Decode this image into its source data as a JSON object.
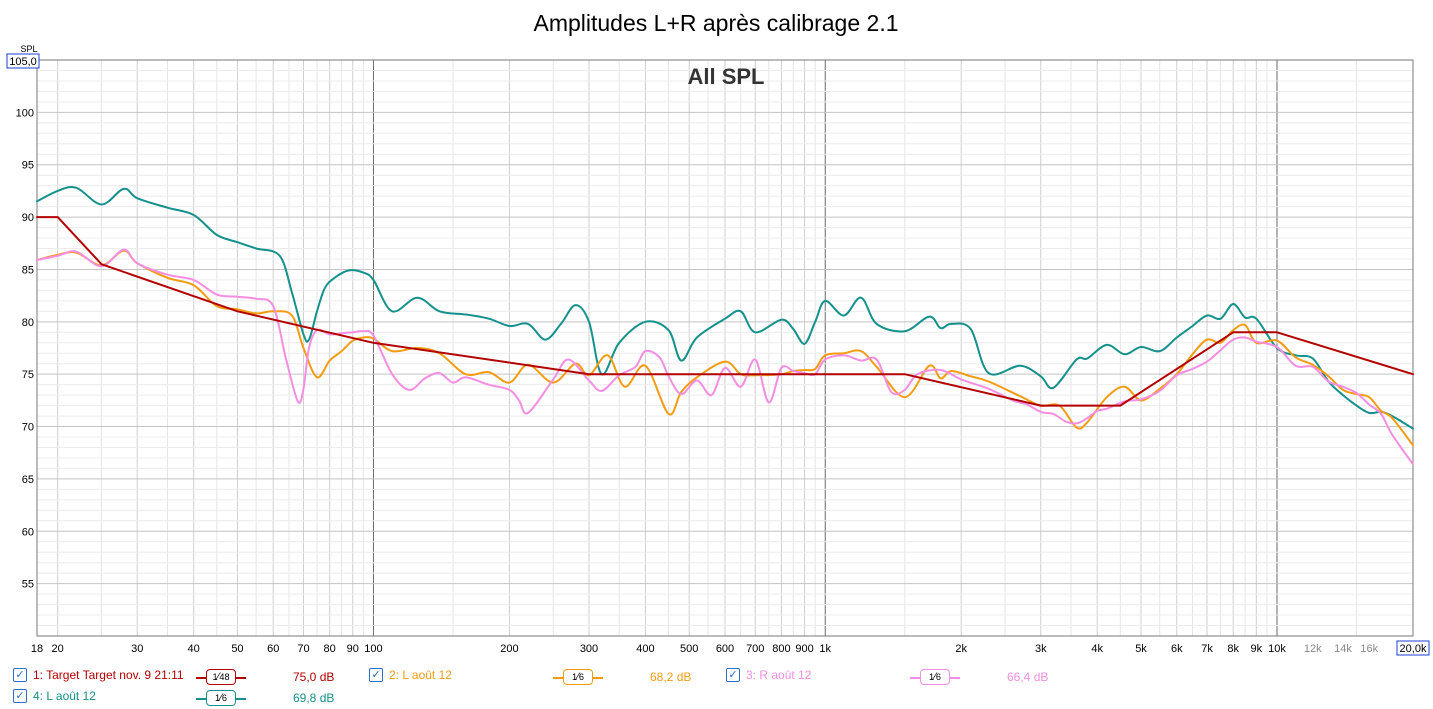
{
  "chart_data": {
    "type": "line",
    "title": "Amplitudes L+R après calibrage 2.1",
    "annotation": "All SPL",
    "ylabel": "SPL",
    "y_top_box": "105,0",
    "x_right_box": "20,0k",
    "x_scale": "log",
    "xlim": [
      18,
      20000
    ],
    "ylim": [
      50,
      105
    ],
    "y_ticks": [
      55,
      60,
      65,
      70,
      75,
      80,
      85,
      90,
      95,
      100
    ],
    "x_ticks": [
      {
        "v": 18,
        "label": "18"
      },
      {
        "v": 20,
        "label": "20"
      },
      {
        "v": 30,
        "label": "30"
      },
      {
        "v": 40,
        "label": "40"
      },
      {
        "v": 50,
        "label": "50"
      },
      {
        "v": 60,
        "label": "60"
      },
      {
        "v": 70,
        "label": "70"
      },
      {
        "v": 80,
        "label": "80"
      },
      {
        "v": 90,
        "label": "90"
      },
      {
        "v": 100,
        "label": "100"
      },
      {
        "v": 200,
        "label": "200"
      },
      {
        "v": 300,
        "label": "300"
      },
      {
        "v": 400,
        "label": "400"
      },
      {
        "v": 500,
        "label": "500"
      },
      {
        "v": 600,
        "label": "600"
      },
      {
        "v": 700,
        "label": "700"
      },
      {
        "v": 800,
        "label": "800"
      },
      {
        "v": 900,
        "label": "900"
      },
      {
        "v": 1000,
        "label": "1k"
      },
      {
        "v": 2000,
        "label": "2k"
      },
      {
        "v": 3000,
        "label": "3k"
      },
      {
        "v": 4000,
        "label": "4k"
      },
      {
        "v": 5000,
        "label": "5k"
      },
      {
        "v": 6000,
        "label": "6k"
      },
      {
        "v": 7000,
        "label": "7k"
      },
      {
        "v": 8000,
        "label": "8k"
      },
      {
        "v": 9000,
        "label": "9k"
      },
      {
        "v": 10000,
        "label": "10k"
      },
      {
        "v": 12000,
        "label": "12k"
      },
      {
        "v": 14000,
        "label": "14k"
      },
      {
        "v": 16000,
        "label": "16k"
      }
    ],
    "series": [
      {
        "name": "L août 12 (4)",
        "color": "#14918c",
        "x": [
          18,
          20,
          22,
          25,
          28,
          30,
          35,
          40,
          45,
          50,
          55,
          62,
          66,
          70,
          72,
          75,
          78,
          82,
          88,
          95,
          100,
          110,
          125,
          140,
          160,
          180,
          200,
          220,
          240,
          260,
          280,
          300,
          320,
          350,
          400,
          450,
          480,
          520,
          600,
          650,
          700,
          800,
          850,
          900,
          950,
          1000,
          1100,
          1200,
          1300,
          1500,
          1700,
          1800,
          1900,
          2100,
          2300,
          2700,
          3000,
          3200,
          3600,
          3800,
          4200,
          4600,
          5000,
          5500,
          6000,
          6500,
          7000,
          7500,
          8000,
          8500,
          9000,
          10000,
          11000,
          12000,
          13000,
          14000,
          15000,
          16000,
          17000,
          18000,
          20000
        ],
        "values": [
          91.5,
          92.5,
          92.8,
          91.2,
          92.7,
          91.8,
          90.9,
          90.2,
          88.3,
          87.6,
          87.0,
          86.3,
          82.8,
          78.8,
          78.3,
          81.0,
          83.2,
          84.2,
          84.9,
          84.7,
          84.0,
          81.0,
          82.3,
          81.0,
          80.7,
          80.3,
          79.6,
          79.8,
          78.3,
          79.8,
          81.6,
          80.0,
          75.0,
          78.0,
          80.0,
          79.2,
          76.3,
          78.5,
          80.3,
          81.0,
          79.0,
          80.2,
          79.3,
          77.9,
          80.0,
          82.0,
          80.6,
          82.3,
          79.8,
          79.1,
          80.5,
          79.4,
          79.8,
          79.3,
          75.1,
          75.8,
          74.8,
          73.7,
          76.4,
          76.5,
          77.8,
          76.9,
          77.6,
          77.2,
          78.5,
          79.6,
          80.6,
          80.3,
          81.7,
          80.4,
          80.3,
          77.5,
          76.8,
          76.5,
          74.3,
          73.0,
          72.0,
          71.3,
          71.4,
          71.0,
          69.8
        ]
      },
      {
        "name": "L août 12 (2)",
        "color": "#f39c12",
        "x": [
          18,
          20,
          22,
          25,
          28,
          30,
          35,
          40,
          45,
          50,
          55,
          60,
          66,
          70,
          75,
          80,
          85,
          90,
          95,
          100,
          110,
          125,
          140,
          160,
          180,
          200,
          220,
          250,
          280,
          300,
          330,
          360,
          400,
          450,
          480,
          520,
          600,
          650,
          700,
          800,
          850,
          900,
          950,
          1000,
          1100,
          1200,
          1300,
          1500,
          1700,
          1800,
          1900,
          2100,
          2300,
          2700,
          3000,
          3300,
          3600,
          3800,
          4200,
          4600,
          5000,
          5500,
          6000,
          6500,
          7000,
          7500,
          8000,
          8500,
          9000,
          10000,
          11000,
          12000,
          13000,
          14000,
          15000,
          16000,
          17000,
          18000,
          20000
        ],
        "values": [
          85.9,
          86.4,
          86.6,
          85.4,
          86.8,
          85.6,
          84.2,
          83.5,
          81.5,
          81.2,
          80.8,
          81.0,
          80.6,
          77.5,
          74.7,
          76.3,
          77.2,
          78.2,
          78.5,
          78.4,
          77.2,
          77.5,
          77.0,
          75.0,
          75.2,
          74.2,
          75.9,
          74.2,
          76.0,
          74.9,
          76.8,
          73.8,
          75.8,
          71.2,
          73.3,
          74.7,
          76.2,
          75.0,
          74.9,
          75.0,
          75.3,
          75.4,
          75.5,
          76.8,
          77.0,
          77.2,
          75.7,
          72.8,
          75.8,
          74.6,
          75.3,
          74.8,
          74.3,
          72.9,
          72.0,
          72.0,
          69.9,
          70.4,
          72.8,
          73.8,
          72.5,
          73.6,
          75.0,
          76.9,
          78.3,
          78.0,
          79.2,
          79.7,
          78.0,
          78.2,
          76.6,
          75.9,
          74.8,
          73.5,
          73.1,
          72.8,
          71.5,
          70.8,
          68.2
        ]
      },
      {
        "name": "R août 12 (3)",
        "color": "#f48ee3",
        "x": [
          18,
          20,
          22,
          25,
          28,
          30,
          35,
          40,
          45,
          50,
          55,
          60,
          64,
          68,
          70,
          72,
          75,
          80,
          85,
          90,
          95,
          100,
          110,
          120,
          130,
          140,
          150,
          160,
          180,
          200,
          210,
          220,
          250,
          270,
          300,
          320,
          350,
          380,
          400,
          430,
          450,
          480,
          520,
          560,
          600,
          650,
          700,
          750,
          800,
          850,
          900,
          950,
          1000,
          1100,
          1200,
          1300,
          1400,
          1500,
          1600,
          1800,
          2000,
          2300,
          2600,
          2800,
          3000,
          3200,
          3400,
          3600,
          3800,
          4000,
          4200,
          4600,
          5000,
          5500,
          6000,
          6500,
          7000,
          7500,
          8000,
          8500,
          9000,
          10000,
          11000,
          12000,
          13000,
          14000,
          15000,
          16000,
          17000,
          18000,
          20000
        ],
        "values": [
          85.9,
          86.3,
          86.7,
          85.3,
          86.9,
          85.6,
          84.5,
          84.0,
          82.6,
          82.4,
          82.2,
          81.5,
          76.5,
          72.4,
          73.6,
          77.5,
          79.2,
          78.8,
          78.9,
          79.0,
          79.1,
          78.7,
          75.0,
          73.5,
          74.6,
          75.1,
          74.2,
          74.7,
          74.0,
          73.5,
          72.5,
          71.3,
          74.5,
          76.4,
          74.4,
          73.4,
          74.9,
          75.7,
          77.2,
          76.6,
          74.8,
          73.1,
          74.4,
          73.0,
          75.6,
          73.8,
          76.4,
          72.3,
          75.6,
          75.3,
          75.1,
          75.0,
          76.4,
          76.8,
          76.3,
          76.4,
          73.3,
          73.5,
          75.0,
          75.4,
          74.5,
          73.6,
          72.5,
          72.1,
          71.4,
          71.2,
          70.5,
          70.3,
          70.8,
          71.5,
          71.7,
          72.4,
          72.6,
          73.4,
          74.9,
          75.5,
          76.2,
          77.3,
          78.3,
          78.5,
          78.1,
          77.6,
          75.8,
          75.7,
          74.3,
          73.8,
          73.2,
          72.1,
          71.2,
          69.2,
          66.4
        ]
      },
      {
        "name": "Target Target nov. 9 21:11 (1)",
        "color": "#b30000",
        "x": [
          18,
          20,
          25,
          50,
          100,
          300,
          1000,
          1500,
          3000,
          4500,
          8000,
          10000,
          20000
        ],
        "values": [
          90.0,
          90.0,
          85.5,
          81.0,
          78.0,
          75.0,
          75.0,
          75.0,
          72.0,
          72.0,
          79.0,
          79.0,
          75.0
        ]
      }
    ],
    "legend": [
      {
        "label": "1: Target Target nov. 9 21:11",
        "smoothing_num": "1",
        "smoothing_den": "48",
        "value": "75,0 dB",
        "color": "#b30000"
      },
      {
        "label": "2: L août 12",
        "smoothing_num": "1",
        "smoothing_den": "6",
        "value": "68,2 dB",
        "color": "#f39c12"
      },
      {
        "label": "3: R août 12",
        "smoothing_num": "1",
        "smoothing_den": "6",
        "value": "66,4 dB",
        "color": "#f48ee3"
      },
      {
        "label": "4: L août 12",
        "smoothing_num": "1",
        "smoothing_den": "6",
        "value": "69,8 dB",
        "color": "#14918c"
      }
    ]
  }
}
